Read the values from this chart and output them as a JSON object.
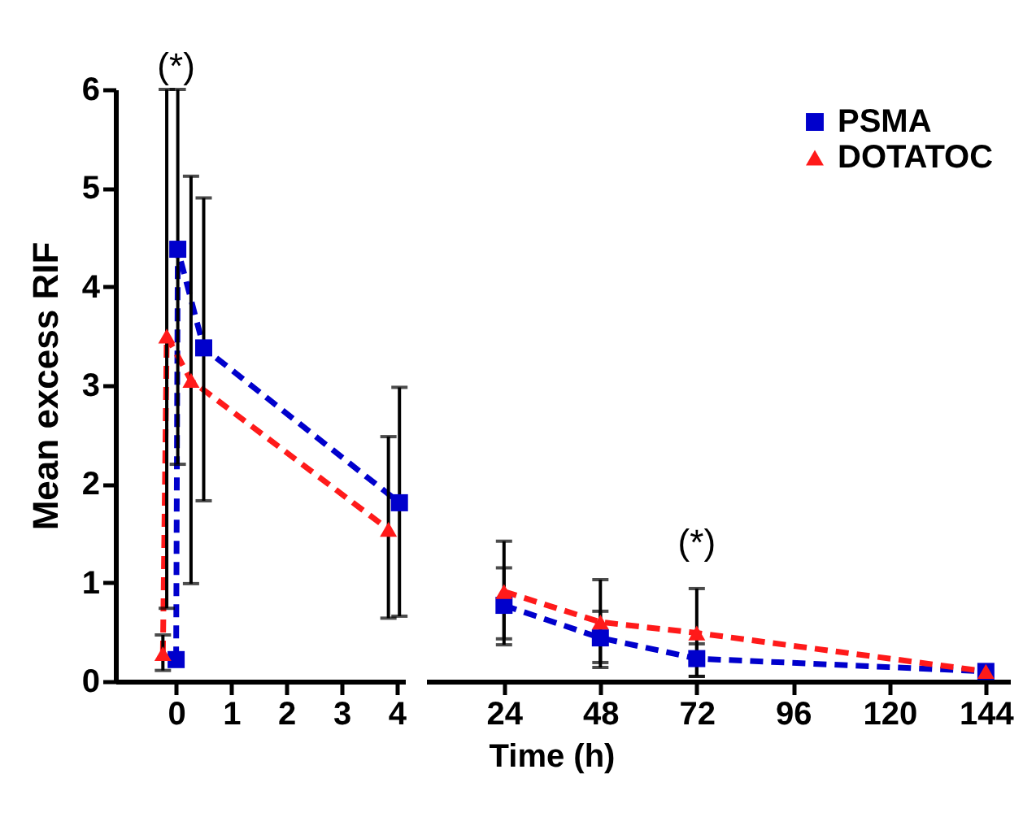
{
  "chart_data": [
    {
      "type": "line",
      "ylabel": "Mean excess RIF",
      "xlim": [
        -1.1,
        4.15
      ],
      "xticks": [
        0,
        1,
        2,
        3,
        4
      ],
      "ylim": [
        0,
        6
      ],
      "yticks": [
        0,
        1,
        2,
        3,
        4,
        5,
        6
      ],
      "line_style": "dashed",
      "grid": false,
      "series": [
        {
          "color": "#0000cc",
          "marker": "square",
          "x": [
            0,
            0.03,
            0.5,
            4.05
          ],
          "values": [
            0.22,
            4.38,
            3.38,
            1.81
          ],
          "errors": [
            null,
            [
              2.2,
              6
            ],
            [
              1.83,
              4.9
            ],
            [
              0.66,
              2.98
            ]
          ]
        },
        {
          "color": "#ff1a1a",
          "marker": "triangle",
          "x": [
            -0.24,
            -0.17,
            0.27,
            3.85
          ],
          "values": [
            0.28,
            3.5,
            3.05,
            1.54
          ],
          "errors": [
            [
              0.11,
              0.47
            ],
            [
              0.74,
              6
            ],
            [
              0.99,
              5.12
            ],
            [
              0.64,
              2.48
            ]
          ]
        }
      ],
      "annotations": [
        "(*)"
      ]
    },
    {
      "type": "line",
      "xlabel": "Time (h)",
      "xlim": [
        4.6,
        150
      ],
      "xticks": [
        24,
        48,
        72,
        96,
        120,
        144
      ],
      "ylim": [
        0,
        6
      ],
      "yticks": [
        0,
        1,
        2,
        3,
        4,
        5,
        6
      ],
      "tick_labels": "x",
      "line_style": "dashed",
      "grid": false,
      "legend": "top right",
      "series": [
        {
          "name": "PSMA",
          "color": "#0000cc",
          "marker": "square",
          "x": [
            24,
            48,
            72,
            144
          ],
          "values": [
            0.77,
            0.44,
            0.23,
            0.1
          ],
          "errors": [
            [
              0.43,
              1.15
            ],
            [
              0.19,
              0.71
            ],
            [
              0.05,
              0.38
            ],
            null
          ]
        },
        {
          "name": "DOTATOC",
          "color": "#ff1a1a",
          "marker": "triangle",
          "x": [
            24,
            48,
            72,
            144
          ],
          "values": [
            0.91,
            0.6,
            0.49,
            0.1
          ],
          "errors": [
            [
              0.37,
              1.42
            ],
            [
              0.14,
              1.03
            ],
            [
              0.05,
              0.94
            ],
            null
          ]
        }
      ],
      "annotations": [
        "(*)"
      ]
    }
  ]
}
